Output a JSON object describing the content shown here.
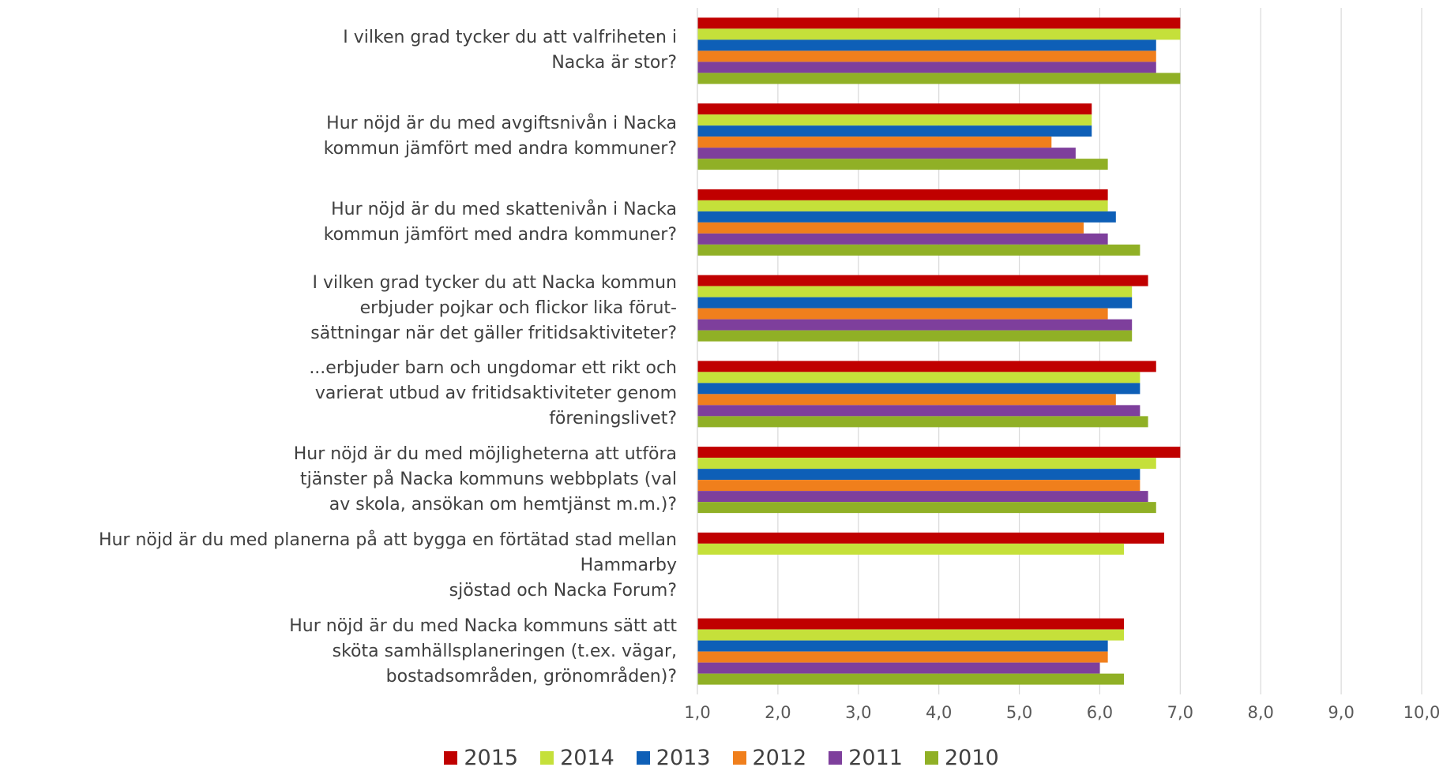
{
  "chart_data": {
    "type": "hbar",
    "categories": [
      "I vilken grad tycker du att valfriheten i\nNacka är stor?",
      "Hur nöjd är du med avgiftsnivån i Nacka\nkommun jämfört med andra kommuner?",
      "Hur nöjd är du med skattenivån i Nacka\nkommun jämfört med andra kommuner?",
      "I vilken grad tycker du att Nacka kommun\nerbjuder pojkar och flickor lika förut-\nsättningar när det gäller fritidsaktiviteter?",
      "...erbjuder barn och ungdomar ett rikt och\nvarierat utbud av fritidsaktiviteter genom\nföreningslivet?",
      "Hur nöjd är du med möjligheterna att utföra\ntjänster på Nacka kommuns webbplats (val\nav skola, ansökan om hemtjänst m.m.)?",
      "Hur nöjd är du med planerna på att bygga en förtätad stad mellan Hammarby\nsjöstad och Nacka Forum?",
      "Hur nöjd är du med Nacka kommuns sätt att\nsköta samhällsplaneringen (t.ex. vägar,\nbostadsområden, grönområden)?"
    ],
    "series": [
      {
        "name": "2015",
        "color": "#c00000",
        "values": [
          7.0,
          5.9,
          6.1,
          6.6,
          6.7,
          7.0,
          6.8,
          6.3
        ]
      },
      {
        "name": "2014",
        "color": "#c5e03a",
        "values": [
          7.0,
          5.9,
          6.1,
          6.4,
          6.5,
          6.7,
          6.3,
          6.3
        ]
      },
      {
        "name": "2013",
        "color": "#0e5fb7",
        "values": [
          6.7,
          5.9,
          6.2,
          6.4,
          6.5,
          6.5,
          null,
          6.1
        ]
      },
      {
        "name": "2012",
        "color": "#f07f1c",
        "values": [
          6.7,
          5.4,
          5.8,
          6.1,
          6.2,
          6.5,
          null,
          6.1
        ]
      },
      {
        "name": "2011",
        "color": "#7e3f9c",
        "values": [
          6.7,
          5.7,
          6.1,
          6.4,
          6.5,
          6.6,
          null,
          6.0
        ]
      },
      {
        "name": "2010",
        "color": "#90b026",
        "values": [
          7.0,
          6.1,
          6.5,
          6.4,
          6.6,
          6.7,
          null,
          6.3
        ]
      }
    ],
    "xlim": [
      1.0,
      10.0
    ],
    "xticks": [
      {
        "value": 1,
        "label": "1,0"
      },
      {
        "value": 2,
        "label": "2,0"
      },
      {
        "value": 3,
        "label": "3,0"
      },
      {
        "value": 4,
        "label": "4,0"
      },
      {
        "value": 5,
        "label": "5,0"
      },
      {
        "value": 6,
        "label": "6,0"
      },
      {
        "value": 7,
        "label": "7,0"
      },
      {
        "value": 8,
        "label": "8,0"
      },
      {
        "value": 9,
        "label": "9,0"
      },
      {
        "value": 10,
        "label": "10,0"
      }
    ],
    "grid": true,
    "legend": "bottom"
  }
}
